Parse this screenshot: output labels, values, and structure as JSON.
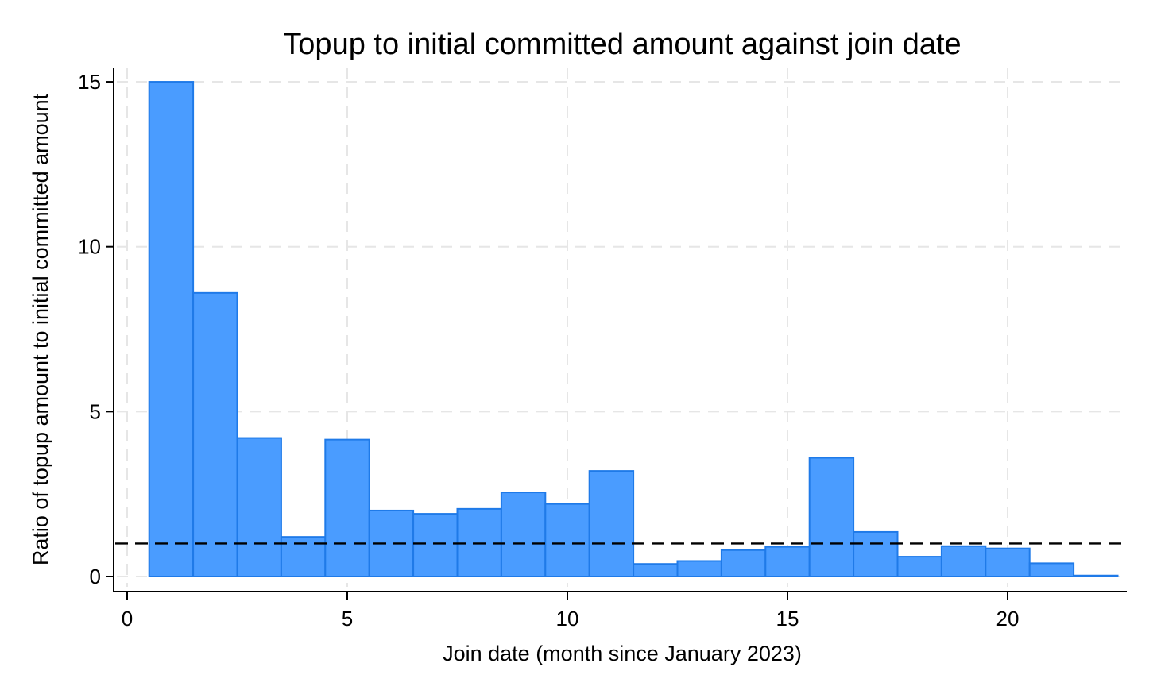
{
  "chart_data": {
    "type": "bar",
    "title": "Topup to initial committed amount against join date",
    "xlabel": "Join date (month since January 2023)",
    "ylabel": "Ratio of topup amount to initial committed amount",
    "xlim": [
      0,
      22.5
    ],
    "ylim": [
      0,
      15
    ],
    "xticks": [
      0,
      5,
      10,
      15,
      20
    ],
    "yticks": [
      0,
      5,
      10,
      15
    ],
    "grid": true,
    "reference_line": {
      "y": 1,
      "style": "dashed",
      "color": "#000000"
    },
    "bar_color": "#4a9cff",
    "bar_edge_color": "#1f7ae8",
    "x": [
      1,
      2,
      3,
      4,
      5,
      6,
      7,
      8,
      9,
      10,
      11,
      12,
      13,
      14,
      15,
      16,
      17,
      18,
      19,
      20,
      21,
      22
    ],
    "values": [
      15.0,
      8.6,
      4.2,
      1.2,
      4.15,
      2.0,
      1.9,
      2.05,
      2.55,
      2.2,
      3.2,
      0.38,
      0.47,
      0.8,
      0.9,
      3.6,
      1.35,
      0.6,
      0.92,
      0.85,
      0.4,
      0.03
    ]
  }
}
